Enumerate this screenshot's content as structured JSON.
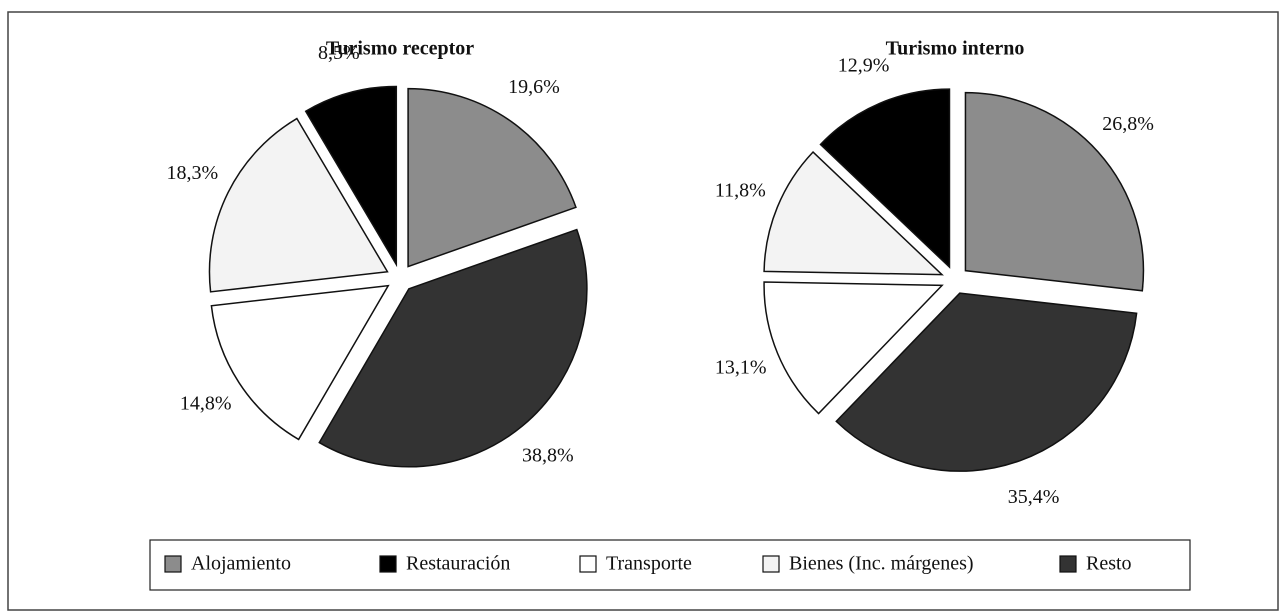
{
  "chart_data": [
    {
      "type": "pie",
      "title": "Turismo receptor",
      "values": [
        19.6,
        38.8,
        14.8,
        18.3,
        8.5
      ],
      "value_labels": [
        "19,6%",
        "38,8%",
        "14,8%",
        "18,3%",
        "8,5%"
      ],
      "colors": [
        "#8c8c8c",
        "#333333",
        "#ffffff",
        "#f3f3f3",
        "#000000"
      ]
    },
    {
      "type": "pie",
      "title": "Turismo interno",
      "values": [
        26.8,
        35.4,
        13.1,
        11.8,
        12.9
      ],
      "value_labels": [
        "26,8%",
        "35,4%",
        "13,1%",
        "11,8%",
        "12,9%"
      ],
      "colors": [
        "#8c8c8c",
        "#333333",
        "#ffffff",
        "#f3f3f3",
        "#000000"
      ]
    }
  ],
  "legend": {
    "labels": [
      "Alojamiento",
      "Restauración",
      "Transporte",
      "Bienes (Inc. márgenes)",
      "Resto"
    ],
    "colors": [
      "#8c8c8c",
      "#000000",
      "#ffffff",
      "#f3f3f3",
      "#333333"
    ]
  }
}
